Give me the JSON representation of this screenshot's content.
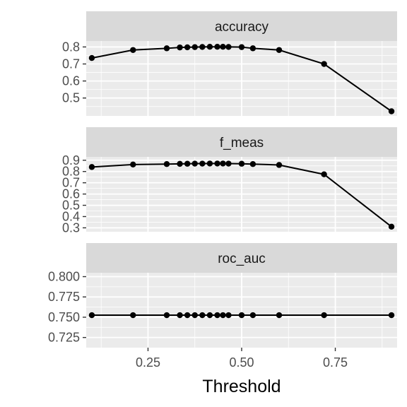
{
  "chart_data": {
    "type": "line",
    "facet_by": "metric",
    "x": [
      0.1,
      0.21,
      0.3,
      0.335,
      0.355,
      0.375,
      0.395,
      0.415,
      0.435,
      0.45,
      0.465,
      0.5,
      0.53,
      0.6,
      0.72,
      0.9
    ],
    "xlabel": "Threshold",
    "xlim": [
      0.085,
      0.915
    ],
    "xticks": [
      0.25,
      0.5,
      0.75
    ],
    "xtick_labels": [
      "0.25",
      "0.50",
      "0.75"
    ],
    "grid": true,
    "legend": "none",
    "colors": {
      "panel": "#ebebeb",
      "strip": "#d9d9d9",
      "grid": "#ffffff",
      "line": "#000000"
    },
    "panels": [
      {
        "name": "accuracy",
        "ylim": [
          0.395,
          0.835
        ],
        "yticks": [
          0.5,
          0.6,
          0.7,
          0.8
        ],
        "ytick_labels": [
          "0.5",
          "0.6",
          "0.7",
          "0.8"
        ],
        "values": [
          0.735,
          0.782,
          0.792,
          0.797,
          0.798,
          0.799,
          0.8,
          0.801,
          0.801,
          0.801,
          0.8,
          0.799,
          0.792,
          0.782,
          0.7,
          0.422
        ]
      },
      {
        "name": "f_meas",
        "ylim": [
          0.265,
          0.93
        ],
        "yticks": [
          0.3,
          0.4,
          0.5,
          0.6,
          0.7,
          0.8,
          0.9
        ],
        "ytick_labels": [
          "0.3",
          "0.4",
          "0.5",
          "0.6",
          "0.7",
          "0.8",
          "0.9"
        ],
        "values": [
          0.84,
          0.862,
          0.866,
          0.868,
          0.869,
          0.87,
          0.87,
          0.871,
          0.871,
          0.871,
          0.87,
          0.869,
          0.866,
          0.858,
          0.775,
          0.31
        ]
      },
      {
        "name": "roc_auc",
        "ylim": [
          0.7125,
          0.8048
        ],
        "yticks": [
          0.725,
          0.75,
          0.775,
          0.8
        ],
        "ytick_labels": [
          "0.725",
          "0.750",
          "0.775",
          "0.800"
        ],
        "values": [
          0.7525,
          0.7525,
          0.7525,
          0.7525,
          0.7525,
          0.7525,
          0.7525,
          0.7525,
          0.7525,
          0.7525,
          0.7525,
          0.7525,
          0.7525,
          0.7525,
          0.7525,
          0.7525
        ]
      }
    ]
  }
}
